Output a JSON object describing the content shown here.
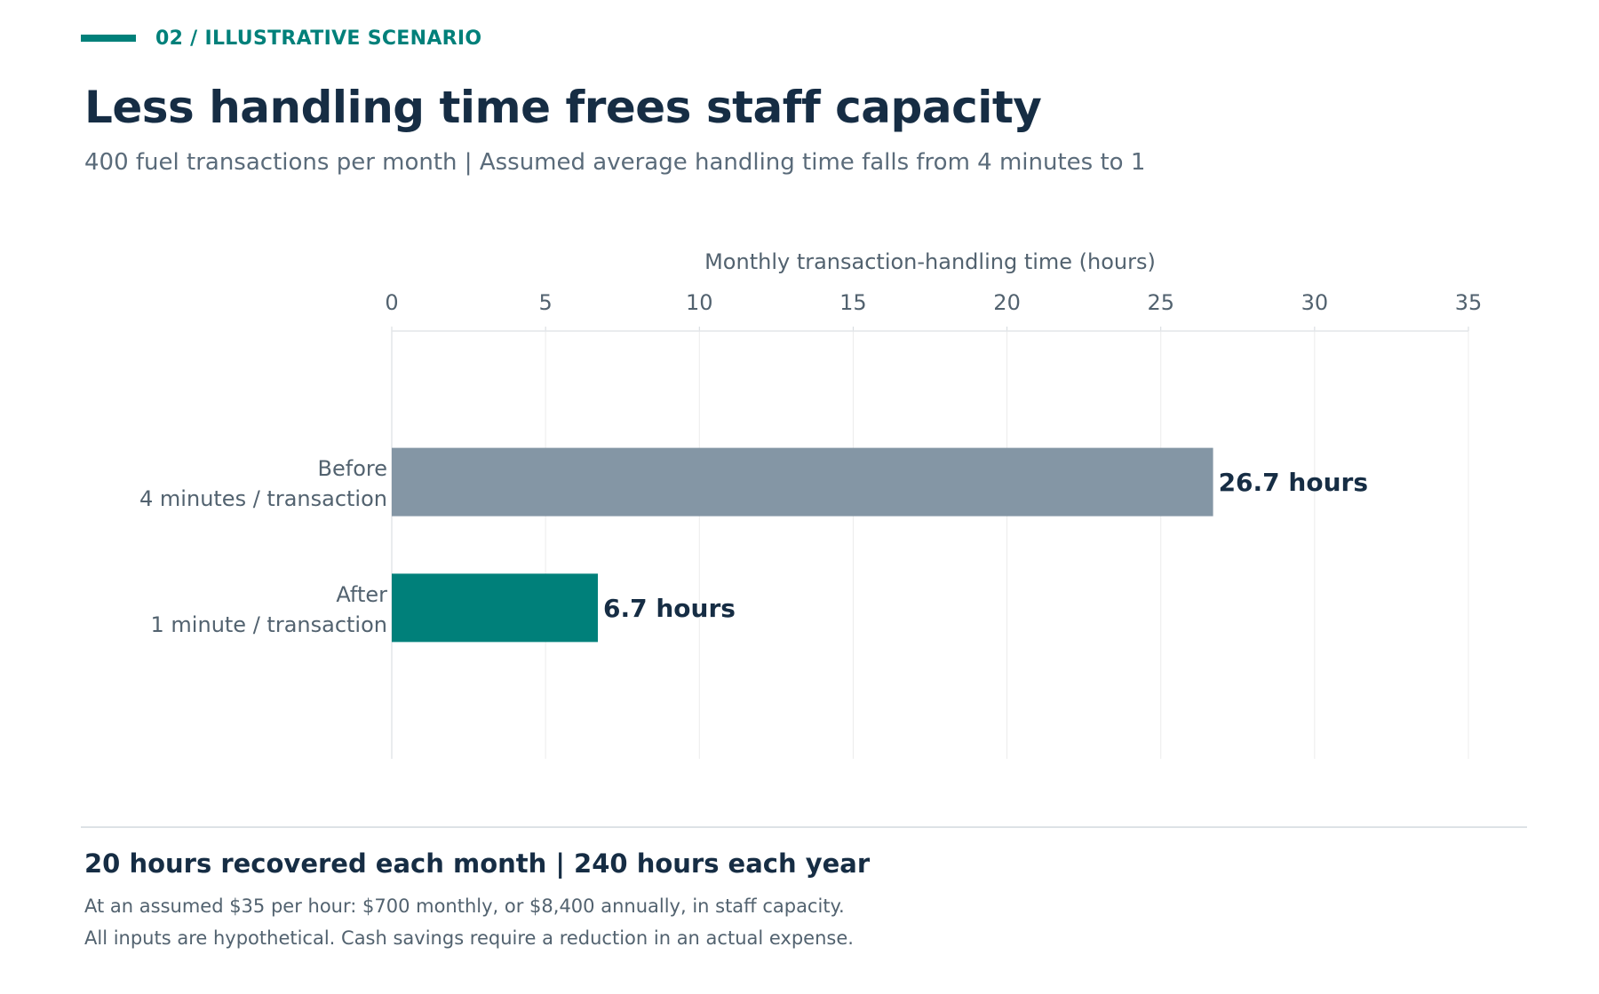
{
  "header": {
    "eyebrow": "02 / ILLUSTRATIVE SCENARIO",
    "title": "Less handling time frees staff capacity",
    "subtitle": "400 fuel transactions per month  |  Assumed average handling time falls from 4 minutes to 1"
  },
  "chart_data": {
    "type": "bar",
    "orientation": "horizontal",
    "categories": [
      [
        "Before",
        "4 minutes / transaction"
      ],
      [
        "After",
        "1 minute / transaction"
      ]
    ],
    "values": [
      26.7,
      6.7
    ],
    "value_labels": [
      "26.7 hours",
      "6.7 hours"
    ],
    "colors": [
      "#8496a5",
      "#00807a"
    ],
    "xlabel": "Monthly transaction-handling time (hours)",
    "xlim": [
      0,
      35
    ],
    "xticks": [
      0,
      5,
      10,
      15,
      20,
      25,
      30,
      35
    ],
    "x_axis_position": "top",
    "grid": true
  },
  "footer": {
    "summary": "20 hours recovered each month  |  240 hours each year",
    "note1": "At an assumed $35 per hour: $700 monthly, or $8,400 annually, in staff capacity.",
    "note2": "All inputs are hypothetical. Cash savings require a reduction in an actual expense."
  }
}
